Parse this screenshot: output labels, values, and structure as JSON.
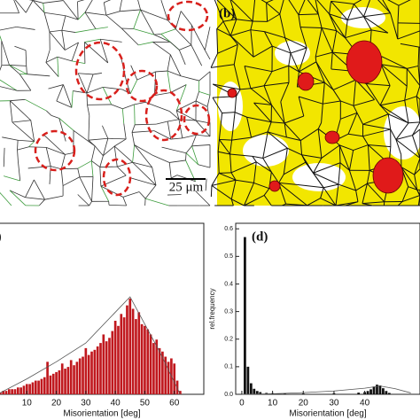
{
  "micrographs": {
    "a": {
      "scale_bar": "25 μm"
    },
    "b": {
      "label": "(b)"
    }
  },
  "chart_data": [
    {
      "type": "bar",
      "label": "(c)",
      "x_label": "Misorientation [deg]",
      "x": [
        0,
        1,
        2,
        3,
        4,
        5,
        6,
        7,
        8,
        9,
        10,
        11,
        12,
        13,
        14,
        15,
        16,
        17,
        18,
        19,
        20,
        21,
        22,
        23,
        24,
        25,
        26,
        27,
        28,
        29,
        30,
        31,
        32,
        33,
        34,
        35,
        36,
        37,
        38,
        39,
        40,
        41,
        42,
        43,
        44,
        45,
        46,
        47,
        48,
        49,
        50,
        51,
        52,
        53,
        54,
        55,
        56,
        57,
        58,
        59,
        60,
        61,
        62
      ],
      "values": [
        1,
        1,
        2,
        2,
        3,
        3,
        3,
        4,
        4,
        5,
        6,
        6,
        7,
        8,
        8,
        9,
        10,
        19,
        11,
        12,
        13,
        14,
        18,
        15,
        16,
        20,
        17,
        19,
        21,
        22,
        27,
        23,
        25,
        26,
        28,
        30,
        35,
        31,
        33,
        37,
        43,
        40,
        47,
        45,
        52,
        56,
        50,
        44,
        48,
        41,
        40,
        38,
        35,
        30,
        32,
        27,
        25,
        22,
        19,
        21,
        18,
        8,
        2
      ],
      "color": "#c0181e",
      "fit": {
        "x": [
          0,
          10,
          20,
          30,
          45,
          55,
          62
        ],
        "values": [
          0,
          9,
          19,
          30,
          57,
          25,
          0
        ],
        "color": "#555555"
      },
      "xlim": [
        0,
        70
      ],
      "ylim": [
        0,
        100
      ],
      "xticks": [
        10,
        20,
        30,
        40,
        50,
        60
      ]
    },
    {
      "type": "bar",
      "label": "(d)",
      "x_label": "Misorientation [deg]",
      "y_label": "rel.frequency",
      "x": [
        1,
        2,
        3,
        4,
        5,
        6,
        8,
        10,
        14,
        20,
        30,
        38,
        40,
        41,
        42,
        43,
        44,
        45,
        46,
        47,
        48
      ],
      "values": [
        0.57,
        0.1,
        0.04,
        0.02,
        0.012,
        0.008,
        0.005,
        0.004,
        0.003,
        0.003,
        0.004,
        0.006,
        0.008,
        0.012,
        0.018,
        0.028,
        0.035,
        0.032,
        0.022,
        0.012,
        0.005
      ],
      "color": "#111111",
      "fit": {
        "x": [
          0,
          10,
          20,
          30,
          40,
          45,
          50,
          55
        ],
        "values": [
          0,
          0.002,
          0.006,
          0.012,
          0.022,
          0.03,
          0.02,
          0.005
        ],
        "color": "#555555"
      },
      "xlim": [
        -2,
        58
      ],
      "ylim": [
        0,
        0.62
      ],
      "xticks": [
        0,
        10,
        20,
        30,
        40
      ],
      "yticks": [
        {
          "value": 0,
          "label": "0.0"
        },
        0.1,
        0.2,
        0.3,
        0.4,
        0.5,
        0.6
      ]
    }
  ]
}
